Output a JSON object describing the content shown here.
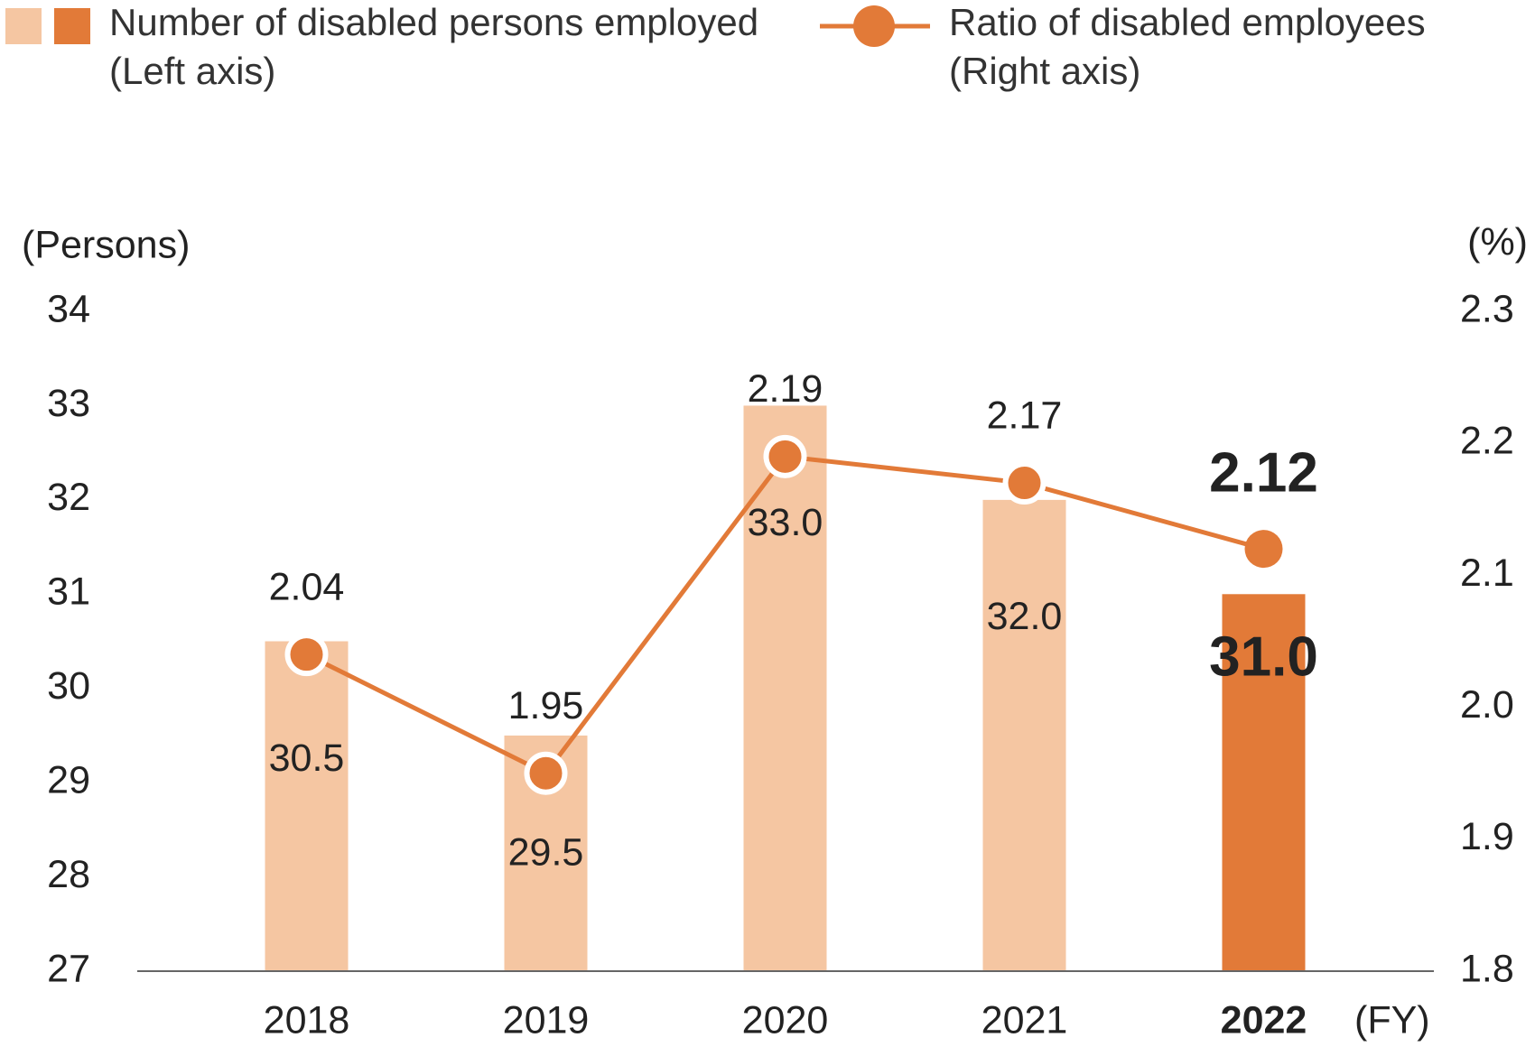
{
  "chart_data": {
    "type": "bar_line",
    "categories": [
      "2018",
      "2019",
      "2020",
      "2021",
      "2022"
    ],
    "highlight_index": 4,
    "x_label": "(FY)",
    "y_label": "(Persons)",
    "y2_label": "(%)",
    "ylim": [
      27,
      34
    ],
    "yticks": [
      27,
      28,
      29,
      30,
      31,
      32,
      33,
      34
    ],
    "y2lim": [
      1.8,
      2.3
    ],
    "y2ticks": [
      1.8,
      1.9,
      {
        "value": 2,
        "label": "2.0"
      },
      2.1,
      2.2,
      2.3
    ],
    "series": [
      {
        "name": "Number of disabled persons employed",
        "legend_note": "(Left axis)",
        "type": "bar",
        "color": "#f5c6a2",
        "highlight_color": "#e27a38",
        "values": [
          30.5,
          29.5,
          33,
          32,
          31
        ],
        "value_labels": [
          "30.5",
          "29.5",
          "33.0",
          "32.0",
          "31.0"
        ]
      },
      {
        "name": "Ratio of disabled employees",
        "legend_note": "(Right axis)",
        "type": "line",
        "axis": "y2",
        "color": "#e27a38",
        "values": [
          2.04,
          1.95,
          2.19,
          2.17,
          2.12
        ]
      }
    ]
  }
}
